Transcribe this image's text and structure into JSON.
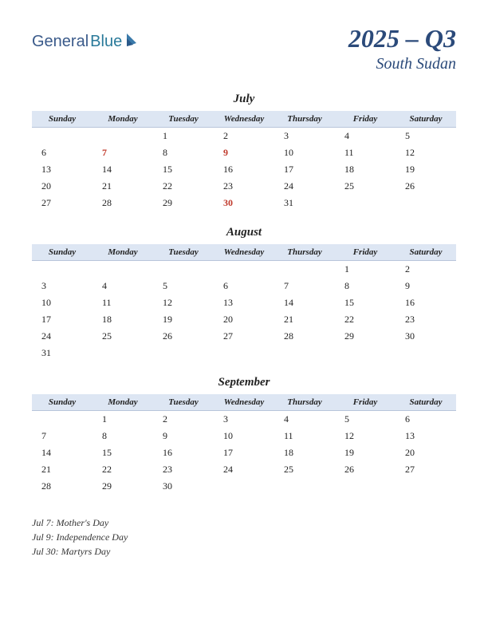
{
  "logo": {
    "part1": "General",
    "part2": "Blue"
  },
  "header": {
    "quarter": "2025 – Q3",
    "country": "South Sudan"
  },
  "dayNames": [
    "Sunday",
    "Monday",
    "Tuesday",
    "Wednesday",
    "Thursday",
    "Friday",
    "Saturday"
  ],
  "colors": {
    "header_bg": "#dde6f3",
    "header_border": "#b8c5da",
    "title_color": "#2b4a7a",
    "holiday_color": "#c0392b",
    "text_color": "#222222"
  },
  "months": [
    {
      "name": "July",
      "weeks": [
        [
          "",
          "",
          "1",
          "2",
          "3",
          "4",
          "5"
        ],
        [
          "6",
          "7",
          "8",
          "9",
          "10",
          "11",
          "12"
        ],
        [
          "13",
          "14",
          "15",
          "16",
          "17",
          "18",
          "19"
        ],
        [
          "20",
          "21",
          "22",
          "23",
          "24",
          "25",
          "26"
        ],
        [
          "27",
          "28",
          "29",
          "30",
          "31",
          "",
          ""
        ]
      ],
      "holidays": [
        "7",
        "9",
        "30"
      ]
    },
    {
      "name": "August",
      "weeks": [
        [
          "",
          "",
          "",
          "",
          "",
          "1",
          "2"
        ],
        [
          "3",
          "4",
          "5",
          "6",
          "7",
          "8",
          "9"
        ],
        [
          "10",
          "11",
          "12",
          "13",
          "14",
          "15",
          "16"
        ],
        [
          "17",
          "18",
          "19",
          "20",
          "21",
          "22",
          "23"
        ],
        [
          "24",
          "25",
          "26",
          "27",
          "28",
          "29",
          "30"
        ],
        [
          "31",
          "",
          "",
          "",
          "",
          "",
          ""
        ]
      ],
      "holidays": []
    },
    {
      "name": "September",
      "weeks": [
        [
          "",
          "1",
          "2",
          "3",
          "4",
          "5",
          "6"
        ],
        [
          "7",
          "8",
          "9",
          "10",
          "11",
          "12",
          "13"
        ],
        [
          "14",
          "15",
          "16",
          "17",
          "18",
          "19",
          "20"
        ],
        [
          "21",
          "22",
          "23",
          "24",
          "25",
          "26",
          "27"
        ],
        [
          "28",
          "29",
          "30",
          "",
          "",
          "",
          ""
        ]
      ],
      "holidays": []
    }
  ],
  "holidayList": [
    "Jul 7: Mother's Day",
    "Jul 9: Independence Day",
    "Jul 30: Martyrs Day"
  ]
}
